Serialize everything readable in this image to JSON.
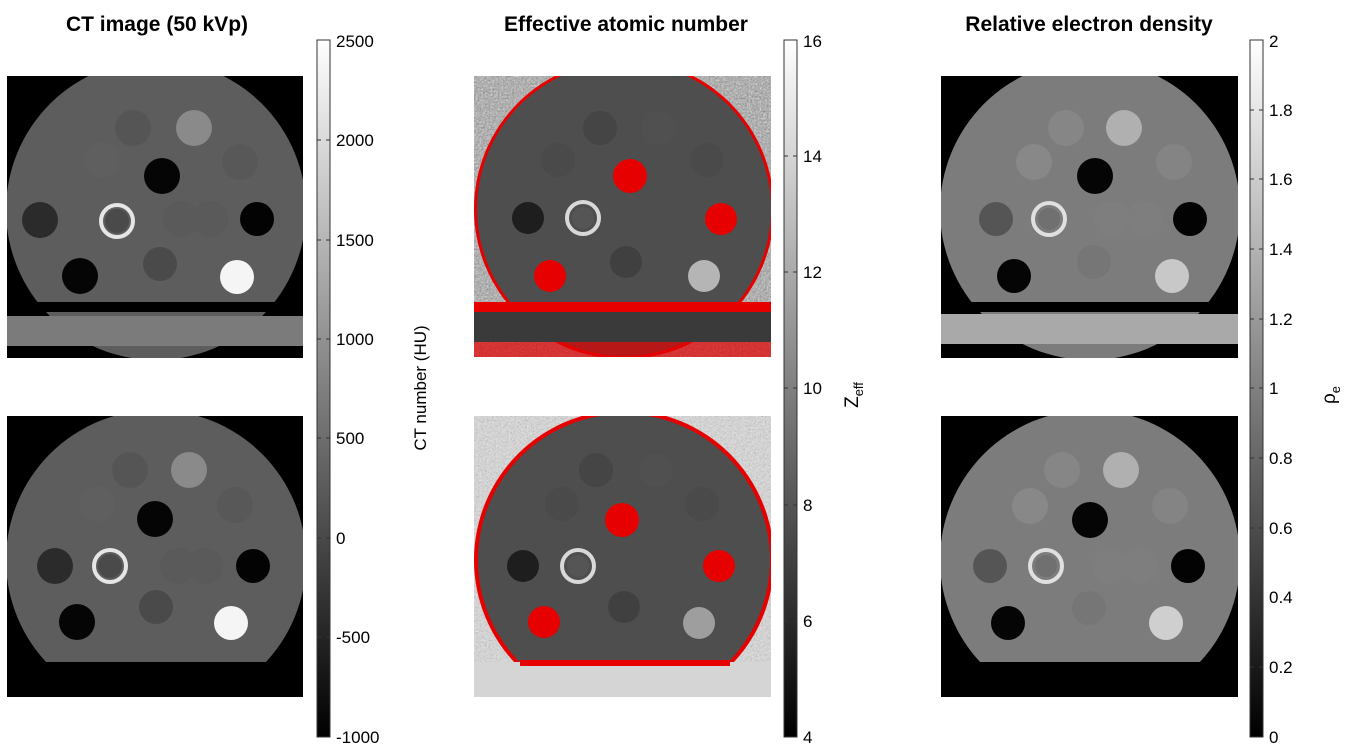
{
  "panels": [
    {
      "title": "CT image (50 kVp)",
      "colorbar": {
        "label": "CT number (HU)",
        "ticks": [
          "2500",
          "2000",
          "1500",
          "1000",
          "500",
          "0",
          "-500",
          "-1000"
        ]
      }
    },
    {
      "title": "Effective atomic number",
      "colorbar": {
        "label_main": "Z",
        "label_sub": "eff",
        "ticks": [
          "16",
          "14",
          "12",
          "10",
          "8",
          "6",
          "4"
        ]
      }
    },
    {
      "title": "Relative electron density",
      "colorbar": {
        "label_main": "ρ",
        "label_sub": "e",
        "ticks": [
          "2",
          "1.8",
          "1.6",
          "1.4",
          "1.2",
          "1",
          "0.8",
          "0.6",
          "0.4",
          "0.2",
          "0"
        ]
      }
    }
  ],
  "colors": {
    "background": "#ffffff",
    "image_bg": "#000000",
    "phantom_body": "#5e5e5e",
    "couch": "#7b7b7b",
    "overlay_red": "#e60000"
  }
}
